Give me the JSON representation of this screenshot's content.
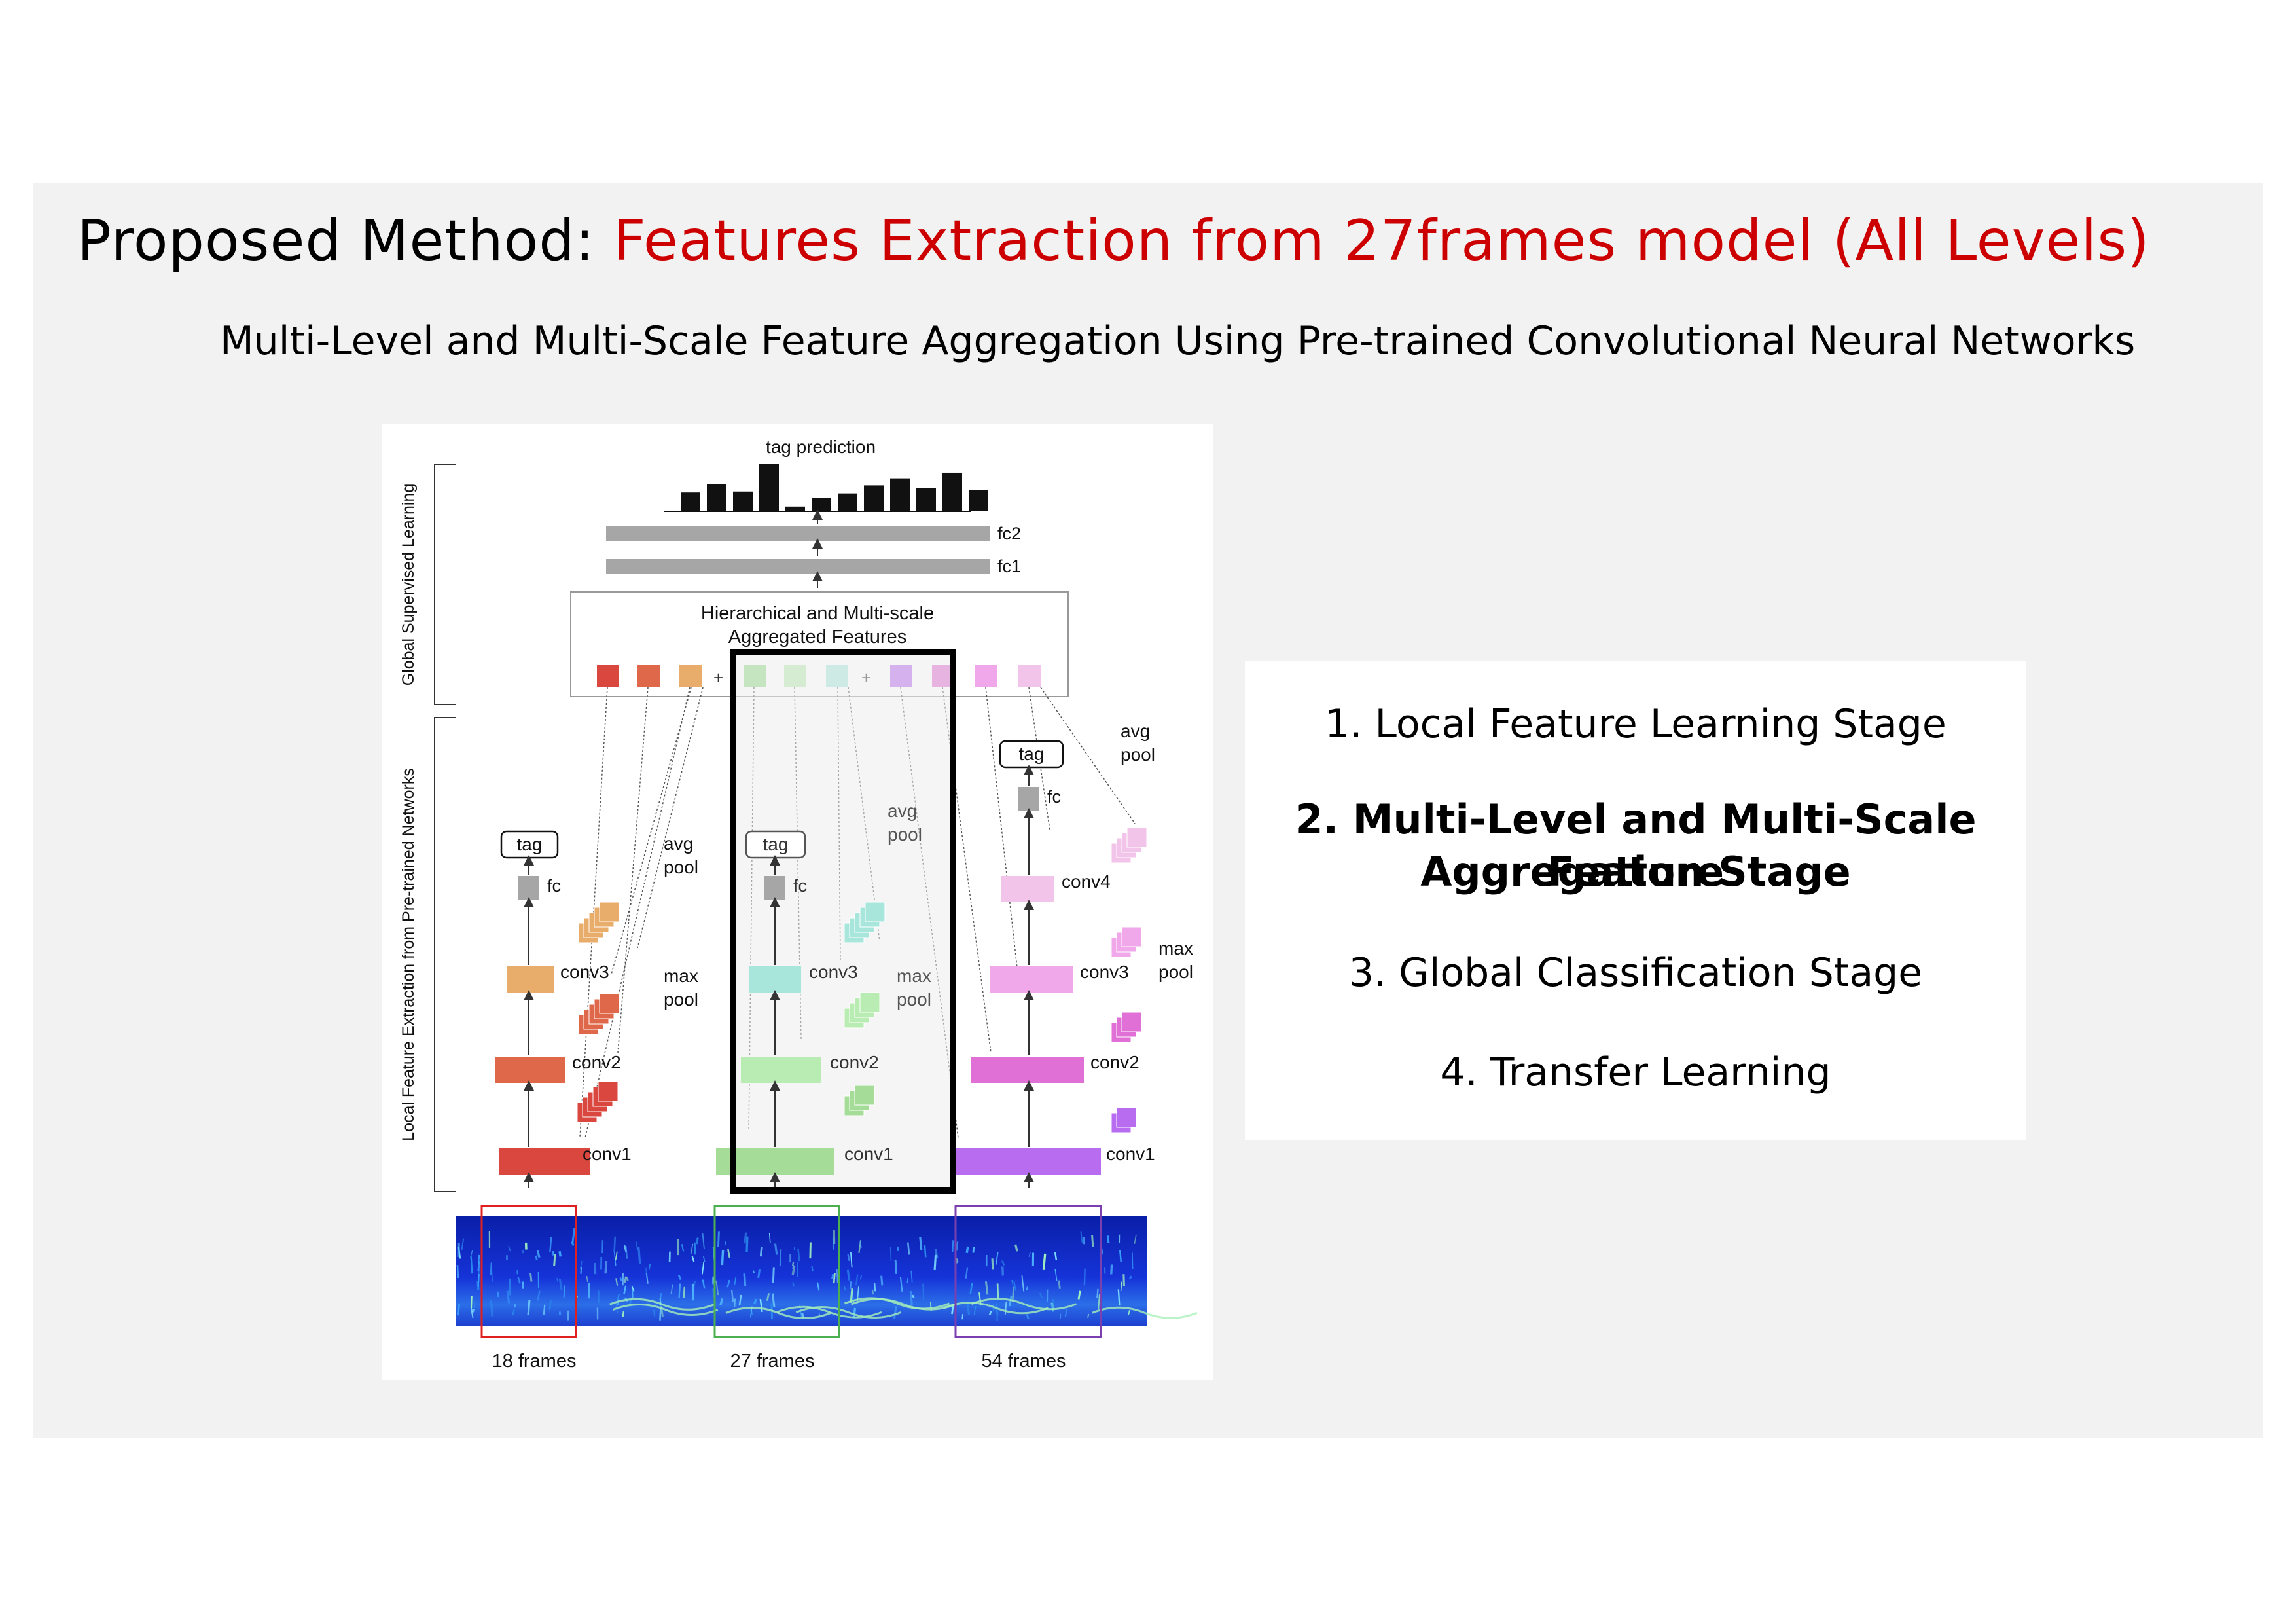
{
  "slide": {
    "title_prefix": "Proposed Method: ",
    "title_accent": "Features Extraction from 27frames model (All Levels)",
    "subtitle": "Multi-Level and Multi-Scale Feature Aggregation Using Pre-trained Convolutional Neural Networks",
    "colors": {
      "accent": "#cc0000",
      "panel": "#f2f2f2"
    }
  },
  "figure": {
    "top_label": "tag prediction",
    "fc2": "fc2",
    "fc1": "fc1",
    "agg_line1": "Hierarchical and Multi-scale",
    "agg_line2": "Aggregated Features",
    "plus": "+",
    "side_top": "Global Supervised Learning",
    "side_bottom": "Local Feature Extraction from Pre-trained Networks",
    "tag": "tag",
    "fc": "fc",
    "conv1": "conv1",
    "conv2": "conv2",
    "conv3": "conv3",
    "conv4": "conv4",
    "avg": "avg",
    "max": "max",
    "pool": "pool",
    "frames_18": "18 frames",
    "frames_27": "27 frames",
    "frames_54": "54 frames",
    "histogram_heights": [
      0.4,
      0.58,
      0.42,
      1.0,
      0.1,
      0.28,
      0.38,
      0.55,
      0.7,
      0.5,
      0.82,
      0.45
    ]
  },
  "stages": {
    "s1": "1. Local Feature Learning Stage",
    "s2_line1": "2. Multi-Level and Multi-Scale Feature",
    "s2_line2": "Aggregation Stage",
    "s3": "3. Global Classification Stage",
    "s4": "4. Transfer Learning"
  }
}
